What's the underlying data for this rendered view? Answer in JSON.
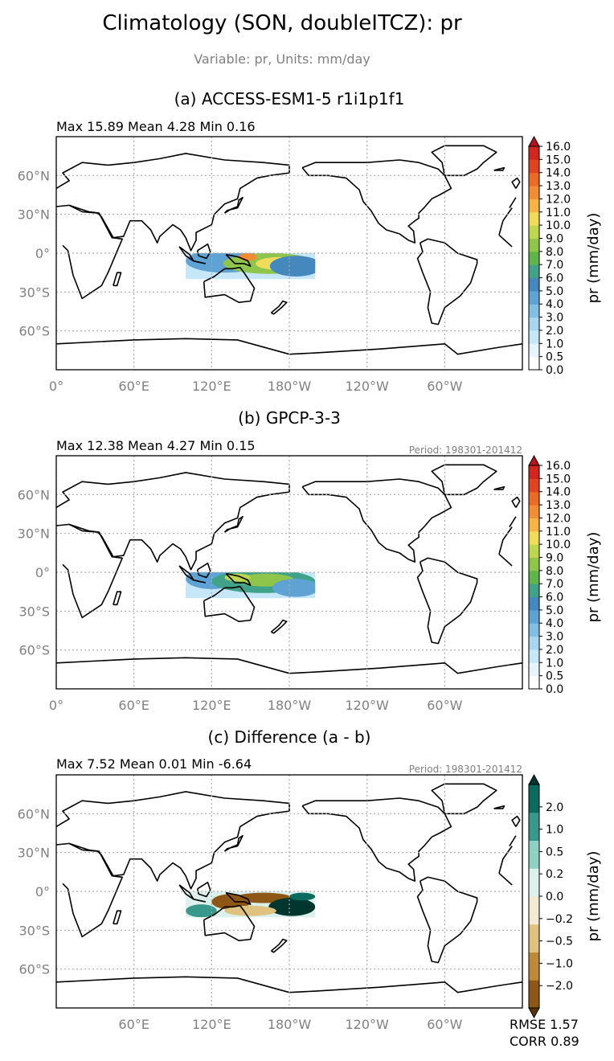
{
  "figure": {
    "title": "Climatology (SON, doubleITCZ): pr",
    "subtitle": "Variable: pr, Units: mm/day"
  },
  "axes": {
    "lat_labels": [
      "60°N",
      "30°N",
      "0°",
      "30°S",
      "60°S"
    ],
    "lon_labels_full": [
      "0°",
      "60°E",
      "120°E",
      "180°W",
      "120°W",
      "60°W"
    ],
    "lon_labels_diff": [
      "60°E",
      "120°E",
      "180°W",
      "120°W",
      "60°W"
    ]
  },
  "panels": [
    {
      "title": "(a) ACCESS-ESM1-5 r1i1p1f1",
      "stats": "Max 15.89 Mean 4.28 Min 0.16",
      "period": "",
      "cbar_label": "pr (mm/day)",
      "cbar_ticks": [
        "16.0",
        "15.0",
        "14.0",
        "13.0",
        "12.0",
        "11.0",
        "10.0",
        "9.0",
        "8.0",
        "7.0",
        "6.0",
        "5.0",
        "4.0",
        "3.0",
        "2.0",
        "1.0",
        "0.5",
        "0.0"
      ]
    },
    {
      "title": "(b) GPCP-3-3",
      "stats": "Max 12.38 Mean 4.27 Min 0.15",
      "period": "Period: 198301-201412",
      "cbar_label": "pr (mm/day)",
      "cbar_ticks": [
        "16.0",
        "15.0",
        "14.0",
        "13.0",
        "12.0",
        "11.0",
        "10.0",
        "9.0",
        "8.0",
        "7.0",
        "6.0",
        "5.0",
        "4.0",
        "3.0",
        "2.0",
        "1.0",
        "0.5",
        "0.0"
      ]
    },
    {
      "title": "(c) Difference (a - b)",
      "stats": "Max 7.52 Mean 0.01 Min -6.64",
      "period": "Period: 198301-201412",
      "cbar_label": "pr (mm/day)",
      "cbar_ticks": [
        "2.0",
        "1.0",
        "0.5",
        "0.2",
        "0.0",
        "−0.2",
        "−0.5",
        "−1.0",
        "−2.0"
      ],
      "rmse": "RMSE 1.57",
      "corr": "CORR 0.89"
    }
  ],
  "colors": {
    "precip": [
      "#ffffff",
      "#e6f4fc",
      "#c6e7f7",
      "#a6d6f0",
      "#82bde3",
      "#5fa2d4",
      "#4588bd",
      "#3fa289",
      "#5fb54a",
      "#8ec54a",
      "#bfd650",
      "#f0dc5a",
      "#f6b346",
      "#f28d35",
      "#ea6a28",
      "#df4420",
      "#d0261f",
      "#b5131f"
    ],
    "diff": [
      "#5a3408",
      "#8f5715",
      "#be8a3a",
      "#dfc27f",
      "#f3ead4",
      "#dcf1ec",
      "#8ed1c4",
      "#37988b",
      "#0c6a5f",
      "#00362d"
    ]
  },
  "chart_data": [
    {
      "type": "heatmap",
      "title": "(a) ACCESS-ESM1-5 r1i1p1f1",
      "stats": {
        "max": 15.89,
        "mean": 4.28,
        "min": 0.16
      },
      "units": "mm/day",
      "levels": [
        0.0,
        0.5,
        1.0,
        2.0,
        3.0,
        4.0,
        5.0,
        6.0,
        7.0,
        8.0,
        9.0,
        10.0,
        11.0,
        12.0,
        13.0,
        14.0,
        15.0,
        16.0
      ],
      "extend": "max",
      "xlim": [
        0,
        360
      ],
      "ylim": [
        -90,
        90
      ],
      "xticks": [
        0,
        60,
        120,
        180,
        240,
        300
      ],
      "yticks": [
        60,
        30,
        0,
        -30,
        -60
      ],
      "grid": true,
      "region": {
        "lon": [
          100,
          200
        ],
        "lat": [
          -20,
          0
        ]
      },
      "blobs": [
        {
          "lon": 130,
          "lat": -6,
          "rlon": 30,
          "rlat": 9,
          "value": 4
        },
        {
          "lon": 165,
          "lat": -8,
          "rlon": 36,
          "rlat": 8,
          "value": 8
        },
        {
          "lon": 172,
          "lat": -8,
          "rlon": 18,
          "rlat": 5,
          "value": 10
        },
        {
          "lon": 148,
          "lat": -3,
          "rlon": 7,
          "rlat": 3,
          "value": 12
        },
        {
          "lon": 185,
          "lat": -10,
          "rlon": 20,
          "rlat": 8,
          "value": 5
        }
      ]
    },
    {
      "type": "heatmap",
      "title": "(b) GPCP-3-3",
      "stats": {
        "max": 12.38,
        "mean": 4.27,
        "min": 0.15
      },
      "units": "mm/day",
      "levels": [
        0.0,
        0.5,
        1.0,
        2.0,
        3.0,
        4.0,
        5.0,
        6.0,
        7.0,
        8.0,
        9.0,
        10.0,
        11.0,
        12.0,
        13.0,
        14.0,
        15.0,
        16.0
      ],
      "extend": "max",
      "xlim": [
        0,
        360
      ],
      "ylim": [
        -90,
        90
      ],
      "xticks": [
        0,
        60,
        120,
        180,
        240,
        300
      ],
      "yticks": [
        60,
        30,
        0,
        -30,
        -60
      ],
      "grid": true,
      "region": {
        "lon": [
          100,
          200
        ],
        "lat": [
          -20,
          0
        ]
      },
      "blobs": [
        {
          "lon": 120,
          "lat": -5,
          "rlon": 20,
          "rlat": 8,
          "value": 4
        },
        {
          "lon": 160,
          "lat": -7,
          "rlon": 40,
          "rlat": 9,
          "value": 6
        },
        {
          "lon": 162,
          "lat": -6,
          "rlon": 22,
          "rlat": 5,
          "value": 8
        },
        {
          "lon": 140,
          "lat": -4,
          "rlon": 10,
          "rlat": 3,
          "value": 9
        },
        {
          "lon": 185,
          "lat": -12,
          "rlon": 18,
          "rlat": 7,
          "value": 4
        }
      ]
    },
    {
      "type": "heatmap",
      "title": "(c) Difference (a - b)",
      "stats": {
        "max": 7.52,
        "mean": 0.01,
        "min": -6.64,
        "rmse": 1.57,
        "corr": 0.89
      },
      "units": "mm/day",
      "levels": [
        -2.0,
        -1.0,
        -0.5,
        -0.2,
        0.0,
        0.2,
        0.5,
        1.0,
        2.0
      ],
      "extend": "both",
      "xlim": [
        0,
        360
      ],
      "ylim": [
        -90,
        90
      ],
      "xticks": [
        60,
        120,
        180,
        240,
        300
      ],
      "yticks": [
        60,
        30,
        0,
        -30,
        -60
      ],
      "grid": true,
      "region": {
        "lon": [
          100,
          200
        ],
        "lat": [
          -20,
          0
        ]
      },
      "blobs": [
        {
          "lon": 112,
          "lat": -15,
          "rlon": 12,
          "rlat": 5,
          "value": 0.7
        },
        {
          "lon": 135,
          "lat": -8,
          "rlon": 15,
          "rlat": 6,
          "value": -1.2
        },
        {
          "lon": 160,
          "lat": -5,
          "rlon": 22,
          "rlat": 4,
          "value": -1.5
        },
        {
          "lon": 182,
          "lat": -12,
          "rlon": 18,
          "rlat": 7,
          "value": 2.5
        },
        {
          "lon": 150,
          "lat": -15,
          "rlon": 20,
          "rlat": 4,
          "value": -0.4
        },
        {
          "lon": 190,
          "lat": -4,
          "rlon": 10,
          "rlat": 3,
          "value": 1.2
        }
      ]
    }
  ]
}
